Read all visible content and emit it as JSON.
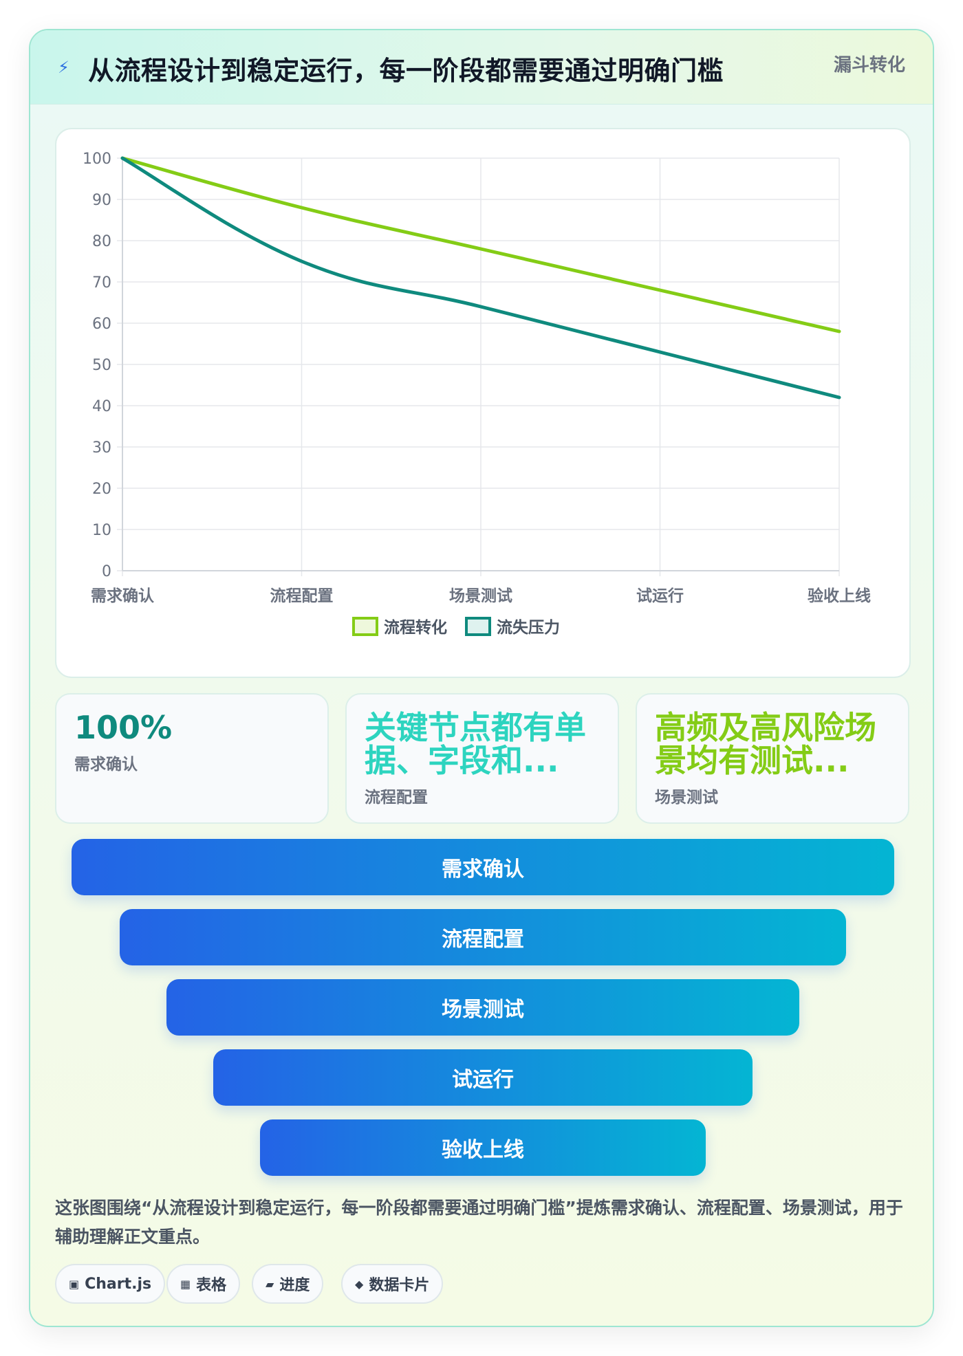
{
  "header": {
    "icon": "lightning-icon",
    "title": "从流程设计到稳定运行，每一阶段都需要通过明确门槛",
    "tag": "漏斗转化"
  },
  "chart_data": {
    "type": "line",
    "categories": [
      "需求确认",
      "流程配置",
      "场景测试",
      "试运行",
      "验收上线"
    ],
    "series": [
      {
        "name": "流程转化",
        "values": [
          100,
          88,
          78,
          68,
          58
        ],
        "color": "#84cc16"
      },
      {
        "name": "流失压力",
        "values": [
          100,
          75,
          64,
          53,
          42
        ],
        "color": "#0f8a7e"
      }
    ],
    "ylim": [
      0,
      100
    ],
    "yticks": [
      0,
      10,
      20,
      30,
      40,
      50,
      60,
      70,
      80,
      90,
      100
    ],
    "grid": true,
    "legend": "bottom"
  },
  "stats": [
    {
      "value": "100%",
      "label": "需求确认",
      "color": "#0f8a7e"
    },
    {
      "value": "关键节点都有单据、字段和...",
      "label": "流程配置",
      "color": "#2dd4bf"
    },
    {
      "value": "高频及高风险场景均有测试...",
      "label": "场景测试",
      "color": "#84cc16"
    }
  ],
  "funnel": [
    {
      "label": "需求确认"
    },
    {
      "label": "流程配置"
    },
    {
      "label": "场景测试"
    },
    {
      "label": "试运行"
    },
    {
      "label": "验收上线"
    }
  ],
  "description": "这张图围绕“从流程设计到稳定运行，每一阶段都需要通过明确门槛”提炼需求确认、流程配置、场景测试，用于辅助理解正文重点。",
  "pills": [
    {
      "icon": "▣",
      "label": "Chart.js"
    },
    {
      "icon": "▦",
      "label": "表格"
    },
    {
      "icon": "▰",
      "label": "进度"
    },
    {
      "icon": "◆",
      "label": "数据卡片"
    }
  ]
}
